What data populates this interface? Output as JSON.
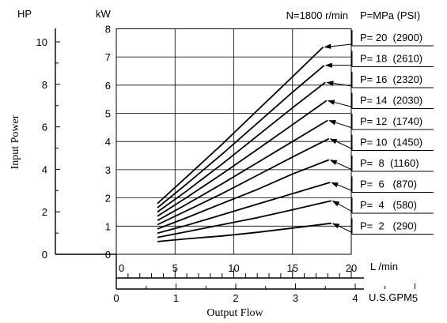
{
  "chart_data": {
    "type": "line",
    "annotation": "N=1800 r/min",
    "legend_header": "P=MPa (PSI)",
    "ylabel": "Input Power",
    "xlabel": "Output Flow",
    "y_axis_hp": {
      "unit": "HP",
      "ticks": [
        "0",
        "2",
        "4",
        "6",
        "8",
        "10"
      ],
      "range": [
        0,
        10.8
      ]
    },
    "y_axis_kw": {
      "unit": "kW",
      "ticks": [
        "0",
        "1",
        "2",
        "3",
        "4",
        "5",
        "6",
        "7",
        "8"
      ],
      "range": [
        0,
        8
      ]
    },
    "x_axis_lmin": {
      "unit": "L /min",
      "ticks": [
        "0",
        "5",
        "10",
        "15",
        "20"
      ],
      "range": [
        0,
        20
      ]
    },
    "x_axis_gpm": {
      "unit": "U.S.GPM",
      "ticks": [
        "0",
        "1",
        "2",
        "3",
        "4",
        "5"
      ]
    },
    "grid": true,
    "series": [
      {
        "name": "P=  2   (290)",
        "x": [
          3.5,
          6,
          9,
          12,
          15,
          18.3
        ],
        "y": [
          0.45,
          0.55,
          0.65,
          0.78,
          0.93,
          1.1
        ]
      },
      {
        "name": "P=  4   (580)",
        "x": [
          3.5,
          6,
          9,
          12,
          15,
          18.3
        ],
        "y": [
          0.6,
          0.8,
          1.05,
          1.3,
          1.58,
          1.9
        ]
      },
      {
        "name": "P=  6   (870)",
        "x": [
          3.5,
          6,
          9,
          12,
          15,
          18.2
        ],
        "y": [
          0.75,
          1.03,
          1.4,
          1.78,
          2.15,
          2.55
        ]
      },
      {
        "name": "P=  8  (1160)",
        "x": [
          3.5,
          6,
          9,
          12,
          15,
          18.1
        ],
        "y": [
          0.9,
          1.3,
          1.8,
          2.3,
          2.85,
          3.35
        ]
      },
      {
        "name": "P= 10  (1450)",
        "x": [
          3.5,
          6,
          9,
          12,
          15,
          18.1
        ],
        "y": [
          1.05,
          1.55,
          2.15,
          2.8,
          3.45,
          4.1
        ]
      },
      {
        "name": "P= 12  (1740)",
        "x": [
          3.5,
          6,
          9,
          12,
          15,
          18.0
        ],
        "y": [
          1.2,
          1.78,
          2.5,
          3.25,
          4.0,
          4.75
        ]
      },
      {
        "name": "P= 14  (2030)",
        "x": [
          3.5,
          6,
          9,
          12,
          15,
          17.9
        ],
        "y": [
          1.35,
          2.02,
          2.85,
          3.72,
          4.6,
          5.45
        ]
      },
      {
        "name": "P= 16  (2320)",
        "x": [
          3.5,
          6,
          9,
          12,
          15,
          17.8
        ],
        "y": [
          1.5,
          2.25,
          3.2,
          4.2,
          5.2,
          6.1
        ]
      },
      {
        "name": "P= 18  (2610)",
        "x": [
          3.5,
          6,
          9,
          12,
          15,
          17.7
        ],
        "y": [
          1.65,
          2.5,
          3.55,
          4.65,
          5.75,
          6.7
        ]
      },
      {
        "name": "P= 20  (2900)",
        "x": [
          3.5,
          6,
          9,
          12,
          15,
          17.6
        ],
        "y": [
          1.8,
          2.75,
          3.9,
          5.1,
          6.3,
          7.35
        ]
      }
    ]
  }
}
